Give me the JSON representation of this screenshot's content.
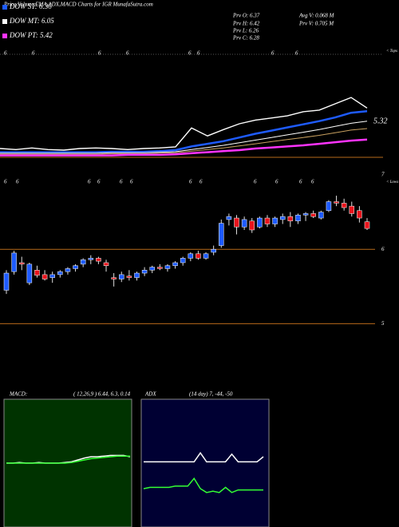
{
  "header": {
    "title": "Price,Volume,EMA,ADX,MACD Charts for IGR MunafaSutra.com",
    "prv_o": "Prv  O: 6.37",
    "prv_h": "Prv  H: 6.42",
    "prv_l": "Prv  L: 6.26",
    "prv_c": "Prv  C: 6.28",
    "avg_v": "Avg V: 0.068 M",
    "prv_v": "Prv  V: 0.705 M"
  },
  "chart_data": [
    {
      "type": "line",
      "ylim": [
        4.8,
        7.0
      ],
      "end_label": "5.32",
      "corner_label": "< Tops",
      "date_marks": [
        "6",
        "6",
        "6",
        "6",
        "6",
        "6",
        "6",
        "6"
      ],
      "series": [
        {
          "color": "#ffffff",
          "values": [
            5.24,
            5.22,
            5.25,
            5.22,
            5.21,
            5.24,
            5.25,
            5.24,
            5.22,
            5.24,
            5.25,
            5.27,
            5.63,
            5.48,
            5.6,
            5.71,
            5.78,
            5.82,
            5.86,
            5.94,
            5.97,
            6.09,
            6.21,
            6.01
          ]
        },
        {
          "name": "DOW ST: 6.36",
          "color": "#1e5bff",
          "values": [
            5.17,
            5.17,
            5.17,
            5.17,
            5.17,
            5.17,
            5.17,
            5.18,
            5.18,
            5.18,
            5.19,
            5.21,
            5.28,
            5.33,
            5.38,
            5.45,
            5.52,
            5.58,
            5.64,
            5.7,
            5.76,
            5.83,
            5.92,
            5.95
          ]
        },
        {
          "name": "DOW MT: 6.05",
          "color": "#ffffff",
          "values": [
            5.15,
            5.15,
            5.15,
            5.15,
            5.15,
            5.15,
            5.15,
            5.16,
            5.16,
            5.16,
            5.17,
            5.18,
            5.22,
            5.26,
            5.3,
            5.35,
            5.4,
            5.45,
            5.5,
            5.55,
            5.6,
            5.66,
            5.72,
            5.76
          ]
        },
        {
          "color": "#c8a060",
          "values": [
            5.13,
            5.13,
            5.13,
            5.13,
            5.13,
            5.13,
            5.13,
            5.14,
            5.14,
            5.14,
            5.15,
            5.16,
            5.19,
            5.22,
            5.25,
            5.29,
            5.33,
            5.37,
            5.41,
            5.45,
            5.49,
            5.54,
            5.59,
            5.62
          ]
        },
        {
          "name": "DOW PT: 5.42",
          "color": "#ff33ff",
          "values": [
            5.11,
            5.11,
            5.11,
            5.11,
            5.11,
            5.11,
            5.11,
            5.11,
            5.12,
            5.12,
            5.12,
            5.13,
            5.15,
            5.17,
            5.19,
            5.21,
            5.24,
            5.26,
            5.28,
            5.3,
            5.33,
            5.36,
            5.39,
            5.41
          ]
        }
      ]
    },
    {
      "type": "candlestick",
      "ylim": [
        4.2,
        7.0
      ],
      "yticks": [
        7,
        6,
        5
      ],
      "up_color": "#1e5bff",
      "down_color": "#e8141c",
      "corner_label": "< Lows",
      "date_marks": [
        "6",
        "6",
        "6",
        "6",
        "6",
        "6",
        "6",
        "6",
        "6",
        "6",
        "6",
        "6"
      ],
      "open": [
        5.45,
        5.7,
        5.82,
        5.55,
        5.72,
        5.66,
        5.62,
        5.66,
        5.7,
        5.74,
        5.8,
        5.86,
        5.88,
        5.82,
        5.62,
        5.6,
        5.64,
        5.62,
        5.68,
        5.72,
        5.76,
        5.74,
        5.78,
        5.82,
        5.88,
        5.94,
        5.88,
        5.96,
        6.05,
        6.4,
        6.42,
        6.3,
        6.38,
        6.3,
        6.42,
        6.34,
        6.4,
        6.44,
        6.38,
        6.46,
        6.48,
        6.42,
        6.52,
        6.64,
        6.62,
        6.58,
        6.52,
        6.37
      ],
      "high": [
        5.72,
        5.98,
        5.9,
        5.82,
        5.78,
        5.72,
        5.7,
        5.72,
        5.76,
        5.8,
        5.88,
        5.92,
        5.9,
        5.86,
        5.68,
        5.7,
        5.72,
        5.7,
        5.76,
        5.78,
        5.8,
        5.8,
        5.84,
        5.9,
        5.96,
        5.98,
        5.96,
        6.05,
        6.4,
        6.48,
        6.46,
        6.44,
        6.42,
        6.44,
        6.46,
        6.44,
        6.48,
        6.5,
        6.48,
        6.5,
        6.52,
        6.52,
        6.66,
        6.72,
        6.68,
        6.64,
        6.58,
        6.42
      ],
      "low": [
        5.4,
        5.66,
        5.72,
        5.52,
        5.62,
        5.58,
        5.55,
        5.62,
        5.66,
        5.7,
        5.76,
        5.8,
        5.8,
        5.7,
        5.5,
        5.56,
        5.58,
        5.58,
        5.64,
        5.68,
        5.72,
        5.7,
        5.74,
        5.78,
        5.84,
        5.86,
        5.86,
        5.92,
        6.02,
        6.32,
        6.2,
        6.26,
        6.22,
        6.28,
        6.3,
        6.3,
        6.34,
        6.3,
        6.34,
        6.38,
        6.42,
        6.4,
        6.5,
        6.58,
        6.52,
        6.44,
        6.36,
        6.26
      ],
      "close": [
        5.68,
        5.95,
        5.8,
        5.8,
        5.65,
        5.6,
        5.66,
        5.7,
        5.74,
        5.78,
        5.86,
        5.88,
        5.84,
        5.78,
        5.6,
        5.66,
        5.62,
        5.68,
        5.72,
        5.76,
        5.74,
        5.78,
        5.82,
        5.88,
        5.94,
        5.88,
        5.94,
        6.0,
        6.35,
        6.44,
        6.3,
        6.4,
        6.26,
        6.42,
        6.34,
        6.42,
        6.44,
        6.38,
        6.46,
        6.48,
        6.44,
        6.5,
        6.64,
        6.62,
        6.56,
        6.48,
        6.42,
        6.28
      ]
    },
    {
      "type": "line",
      "title": "MACD:",
      "subtitle": "( 12,26,9 ) 6.44, 6.3, 0.14",
      "ylim": [
        -1,
        1
      ],
      "series": [
        {
          "color": "#ffffff",
          "values": [
            0.0,
            0.0,
            0.01,
            0.0,
            0.0,
            0.01,
            0.0,
            0.0,
            0.0,
            0.01,
            0.02,
            0.05,
            0.08,
            0.1,
            0.1,
            0.11,
            0.12,
            0.12,
            0.12,
            0.1
          ]
        },
        {
          "color": "#33ff33",
          "values": [
            0.0,
            0.0,
            0.0,
            0.0,
            0.0,
            0.0,
            0.0,
            0.0,
            0.0,
            0.0,
            0.01,
            0.03,
            0.05,
            0.07,
            0.08,
            0.09,
            0.1,
            0.11,
            0.11,
            0.11
          ]
        }
      ]
    },
    {
      "type": "line",
      "title": "ADX",
      "subtitle": "(14  day) 7, -44, -50",
      "ylim": [
        0,
        100
      ],
      "series": [
        {
          "color": "#ffffff",
          "values": [
            51,
            51,
            51,
            51,
            51,
            51,
            51,
            51,
            51,
            58,
            51,
            51,
            51,
            51,
            57,
            51,
            51,
            51,
            51,
            55
          ]
        },
        {
          "color": "#33ff33",
          "values": [
            30,
            31,
            31,
            31,
            31,
            32,
            32,
            32,
            38,
            30,
            27,
            28,
            27,
            31,
            27,
            29,
            29,
            29,
            29,
            29
          ]
        }
      ]
    }
  ]
}
